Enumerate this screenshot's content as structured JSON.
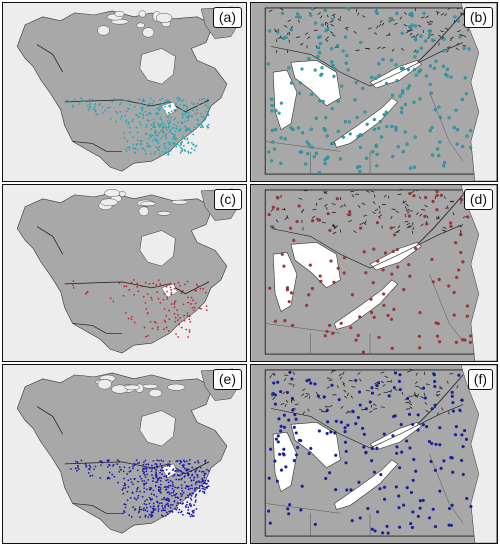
{
  "panels": [
    {
      "id": "a",
      "label": "(a)",
      "kind": "overview",
      "color": "#26a6b4",
      "density": 420
    },
    {
      "id": "b",
      "label": "(b)",
      "kind": "zoom",
      "color": "#26a6b4",
      "density": 230
    },
    {
      "id": "c",
      "label": "(c)",
      "kind": "overview",
      "color": "#c0282a",
      "density": 130
    },
    {
      "id": "d",
      "label": "(d)",
      "kind": "zoom",
      "color": "#c0282a",
      "density": 120
    },
    {
      "id": "e",
      "label": "(e)",
      "kind": "overview",
      "color": "#1a1ab0",
      "density": 520
    },
    {
      "id": "f",
      "label": "(f)",
      "kind": "zoom",
      "color": "#1a1ab0",
      "density": 200
    }
  ],
  "colors": {
    "land": "#a8a8a8",
    "water": "#ededed",
    "border": "#1a1a1a",
    "coast": "#333333",
    "lake": "#ffffff"
  }
}
